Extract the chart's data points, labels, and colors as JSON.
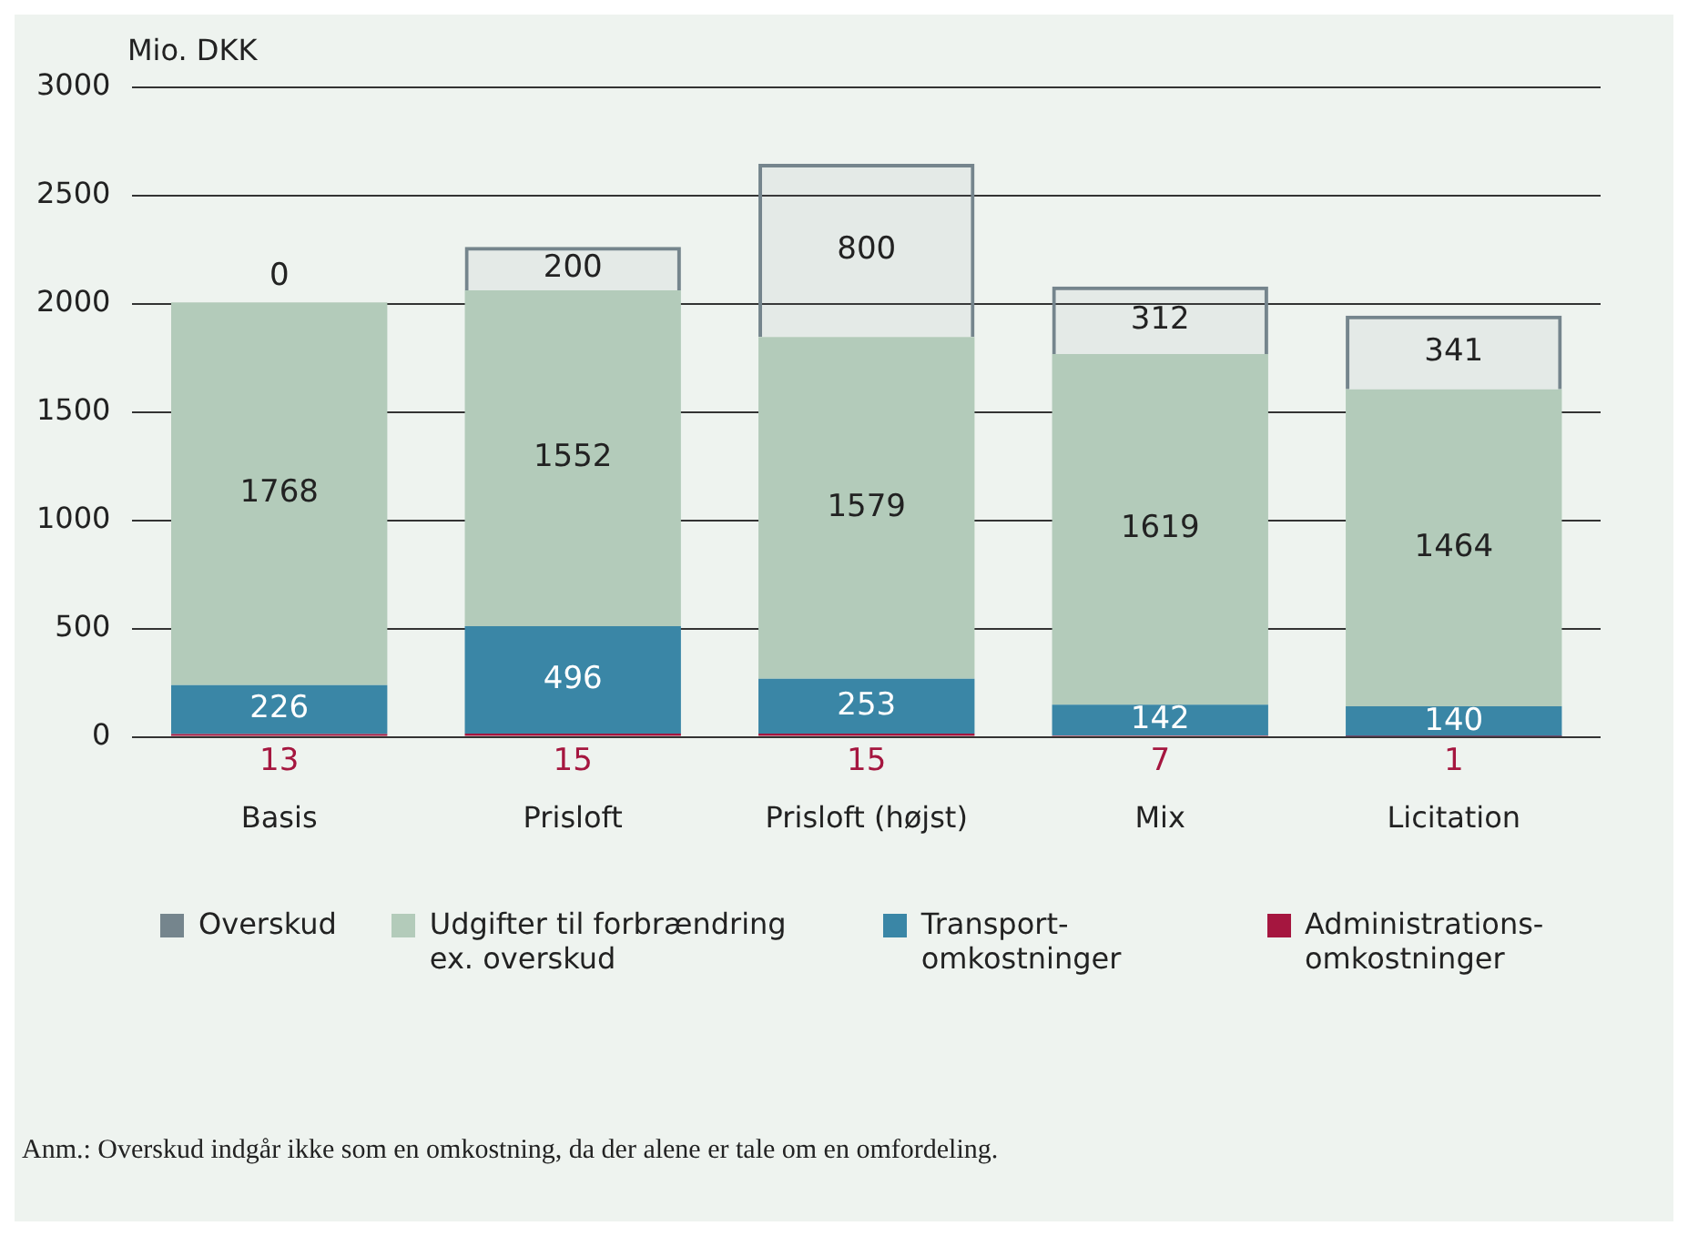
{
  "chart_data": {
    "type": "bar",
    "stacked": true,
    "ylabel": "Mio. DKK",
    "categories": [
      "Basis",
      "Prisloft",
      "Prisloft (højst)",
      "Mix",
      "Licitation"
    ],
    "series": [
      {
        "name": "Administrations-omkostninger",
        "color": "#a5163f",
        "values": [
          13,
          15,
          15,
          7,
          1
        ]
      },
      {
        "name": "Transport-omkostninger",
        "color": "#3a86a6",
        "values": [
          226,
          496,
          253,
          142,
          140
        ]
      },
      {
        "name": "Udgifter til forbrændring ex. overskud",
        "color": "#b3cbba",
        "values": [
          1768,
          1552,
          1579,
          1619,
          1464
        ]
      },
      {
        "name": "Overskud",
        "color": "#75858d",
        "line_style": "dashed",
        "values": [
          0,
          200,
          800,
          312,
          341
        ]
      }
    ],
    "ylim": [
      0,
      3000
    ],
    "yticks": [
      0,
      500,
      1000,
      1500,
      2000,
      2500,
      3000
    ],
    "grid": "y",
    "legend": "bottom",
    "data_labels": true,
    "annotations": [
      "Anm.: Overskud indgår ikke som en omkostning, da der alene er tale om en omfordeling."
    ]
  }
}
